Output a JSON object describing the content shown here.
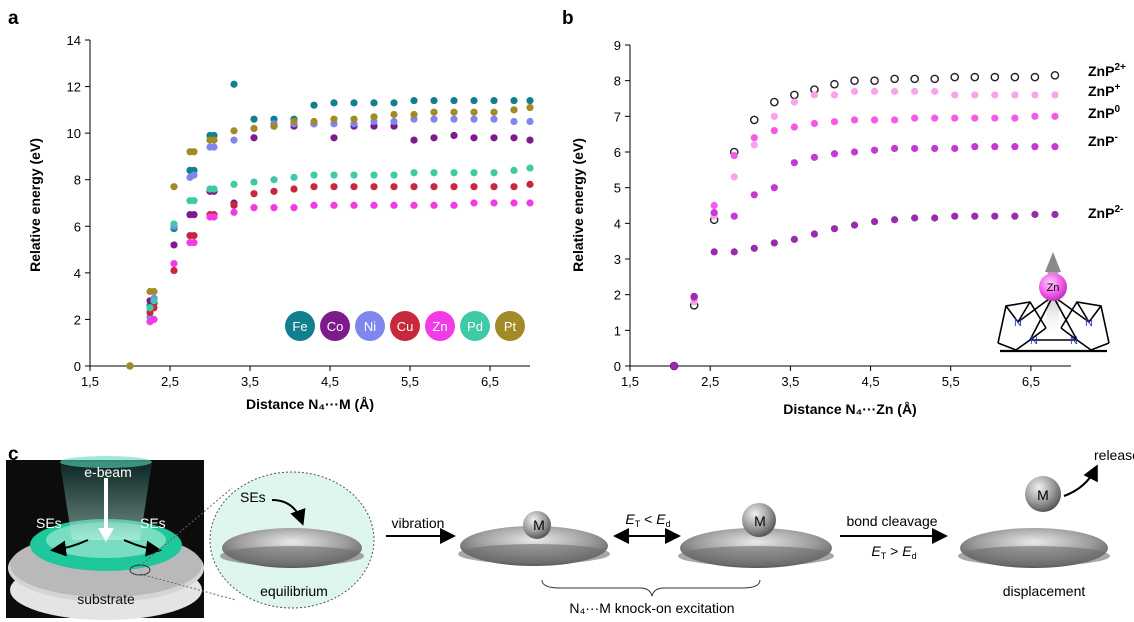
{
  "panels": {
    "a": "a",
    "b": "b",
    "c": "c"
  },
  "chart_data": [
    {
      "id": "a",
      "type": "scatter",
      "xlabel": "Distance N₄···M (Å)",
      "ylabel": "Relative energy (eV)",
      "xlim": [
        1.5,
        7.0
      ],
      "ylim": [
        0,
        14
      ],
      "xticks": [
        1.5,
        2.5,
        3.5,
        4.5,
        5.5,
        6.5
      ],
      "xtick_labels": [
        "1,5",
        "2,5",
        "3,5",
        "4,5",
        "5,5",
        "6,5"
      ],
      "yticks": [
        0,
        2,
        4,
        6,
        8,
        10,
        12,
        14
      ],
      "ytick_labels": [
        "0",
        "2",
        "4",
        "6",
        "8",
        "10",
        "12",
        "14"
      ],
      "grid": false,
      "legend": "bottom-right",
      "x": [
        2.0,
        2.25,
        2.3,
        2.55,
        2.75,
        2.8,
        3.0,
        3.05,
        3.3,
        3.55,
        3.8,
        4.05,
        4.3,
        4.55,
        4.8,
        5.05,
        5.3,
        5.55,
        5.8,
        6.05,
        6.3,
        6.55,
        6.8,
        7.0
      ],
      "series": [
        {
          "name": "Fe",
          "color": "#117f8e",
          "values": [
            0,
            2.6,
            2.9,
            5.9,
            8.4,
            8.4,
            9.9,
            9.9,
            12.1,
            10.6,
            10.6,
            10.6,
            11.2,
            11.3,
            11.3,
            11.3,
            11.3,
            11.4,
            11.4,
            11.4,
            11.4,
            11.4,
            11.4,
            11.4
          ]
        },
        {
          "name": "Co",
          "color": "#7d1a8c",
          "values": [
            0,
            2.8,
            2.7,
            5.2,
            6.5,
            6.5,
            7.5,
            7.5,
            7.0,
            9.8,
            10.3,
            10.3,
            10.4,
            9.8,
            10.3,
            10.3,
            10.3,
            9.7,
            9.8,
            9.9,
            9.8,
            9.8,
            9.8,
            9.7
          ]
        },
        {
          "name": "Ni",
          "color": "#7f86ee",
          "values": [
            0,
            2.1,
            2.9,
            6.0,
            8.1,
            8.2,
            9.4,
            9.4,
            9.7,
            10.2,
            10.4,
            10.4,
            10.4,
            10.4,
            10.4,
            10.5,
            10.5,
            10.6,
            10.6,
            10.6,
            10.6,
            10.6,
            10.5,
            10.5
          ]
        },
        {
          "name": "Cu",
          "color": "#c8283b",
          "values": [
            0,
            2.3,
            2.5,
            4.1,
            5.6,
            5.6,
            6.5,
            6.5,
            6.9,
            7.4,
            7.5,
            7.6,
            7.7,
            7.7,
            7.7,
            7.7,
            7.7,
            7.7,
            7.7,
            7.7,
            7.7,
            7.7,
            7.7,
            7.8
          ]
        },
        {
          "name": "Zn",
          "color": "#f03be6",
          "values": [
            0,
            1.9,
            2.0,
            4.4,
            5.3,
            5.3,
            6.4,
            6.4,
            6.6,
            6.8,
            6.8,
            6.8,
            6.9,
            6.9,
            6.9,
            6.9,
            6.9,
            6.9,
            6.9,
            6.9,
            7.0,
            7.0,
            7.0,
            7.0
          ]
        },
        {
          "name": "Pd",
          "color": "#3fc9a7",
          "values": [
            0,
            2.5,
            2.8,
            6.1,
            7.1,
            7.1,
            7.6,
            7.6,
            7.8,
            7.9,
            8.0,
            8.1,
            8.2,
            8.2,
            8.2,
            8.2,
            8.2,
            8.3,
            8.3,
            8.3,
            8.3,
            8.3,
            8.4,
            8.5
          ]
        },
        {
          "name": "Pt",
          "color": "#a38a28",
          "values": [
            0,
            3.2,
            3.2,
            7.7,
            9.2,
            9.2,
            9.7,
            9.7,
            10.1,
            10.2,
            10.3,
            10.5,
            10.5,
            10.6,
            10.6,
            10.7,
            10.8,
            10.8,
            10.9,
            10.9,
            10.9,
            10.9,
            11.0,
            11.1
          ]
        }
      ]
    },
    {
      "id": "b",
      "type": "scatter",
      "xlabel": "Distance N₄···Zn (Å)",
      "ylabel": "Relative energy (eV)",
      "xlim": [
        1.5,
        7.0
      ],
      "ylim": [
        0,
        9
      ],
      "xticks": [
        1.5,
        2.5,
        3.5,
        4.5,
        5.5,
        6.5
      ],
      "xtick_labels": [
        "1,5",
        "2,5",
        "3,5",
        "4,5",
        "5,5",
        "6,5"
      ],
      "yticks": [
        0,
        1,
        2,
        3,
        4,
        5,
        6,
        7,
        8,
        9
      ],
      "ytick_labels": [
        "0",
        "1",
        "2",
        "3",
        "4",
        "5",
        "6",
        "7",
        "8",
        "9"
      ],
      "grid": false,
      "legend": "right",
      "x": [
        2.05,
        2.3,
        2.55,
        2.8,
        3.05,
        3.3,
        3.55,
        3.8,
        4.05,
        4.3,
        4.55,
        4.8,
        5.05,
        5.3,
        5.55,
        5.8,
        6.05,
        6.3,
        6.55,
        6.8
      ],
      "series": [
        {
          "name": "ZnP2+",
          "label": "ZnP",
          "sup": "2+",
          "color": "#222222",
          "hollow": true,
          "values": [
            0,
            1.7,
            4.1,
            6.0,
            6.9,
            7.4,
            7.6,
            7.75,
            7.9,
            8.0,
            8.0,
            8.05,
            8.05,
            8.05,
            8.1,
            8.1,
            8.1,
            8.1,
            8.1,
            8.15
          ]
        },
        {
          "name": "ZnP+",
          "label": "ZnP",
          "sup": "+",
          "color": "#f6a4ec",
          "values": [
            0,
            1.8,
            4.2,
            5.3,
            6.2,
            7.0,
            7.4,
            7.6,
            7.6,
            7.7,
            7.7,
            7.7,
            7.7,
            7.7,
            7.6,
            7.6,
            7.6,
            7.6,
            7.6,
            7.6
          ]
        },
        {
          "name": "ZnP0",
          "label": "ZnP",
          "sup": "0",
          "color": "#f35ae7",
          "values": [
            0,
            1.9,
            4.5,
            5.9,
            6.4,
            6.6,
            6.7,
            6.8,
            6.85,
            6.9,
            6.9,
            6.9,
            6.95,
            6.95,
            6.95,
            6.95,
            6.95,
            6.95,
            7.0,
            7.0
          ]
        },
        {
          "name": "ZnP-",
          "label": "ZnP",
          "sup": "-",
          "color": "#c43ad3",
          "values": [
            0,
            1.95,
            4.3,
            4.2,
            4.8,
            5.0,
            5.7,
            5.85,
            5.95,
            6.0,
            6.05,
            6.1,
            6.1,
            6.1,
            6.1,
            6.15,
            6.15,
            6.15,
            6.15,
            6.15
          ]
        },
        {
          "name": "ZnP2-",
          "label": "ZnP",
          "sup": "2-",
          "color": "#9a2bb1",
          "values": [
            0,
            1.95,
            3.2,
            3.2,
            3.3,
            3.45,
            3.55,
            3.7,
            3.85,
            3.95,
            4.05,
            4.1,
            4.15,
            4.15,
            4.2,
            4.2,
            4.2,
            4.2,
            4.25,
            4.25
          ]
        }
      ]
    }
  ],
  "structure_b": {
    "metal": "Zn",
    "atoms": [
      "N",
      "N",
      "N",
      "N"
    ]
  },
  "schematic": {
    "ebeam": "e-beam",
    "ses_left": "SEs",
    "ses_right": "SEs",
    "substrate": "substrate",
    "ses_callout": "SEs",
    "equilibrium": "equilibrium",
    "vibration": "vibration",
    "metal_label": "M",
    "cond_lt": {
      "E": "E",
      "sub": "T",
      "op": " < ",
      "E2": "E",
      "sub2": "d"
    },
    "bond_cleavage": "bond cleavage",
    "cond_gt": {
      "E": "E",
      "sub": "T",
      "op": " > ",
      "E2": "E",
      "sub2": "d"
    },
    "release": "release",
    "displacement": "displacement",
    "knock_on": "N₄···M knock-on excitation"
  }
}
